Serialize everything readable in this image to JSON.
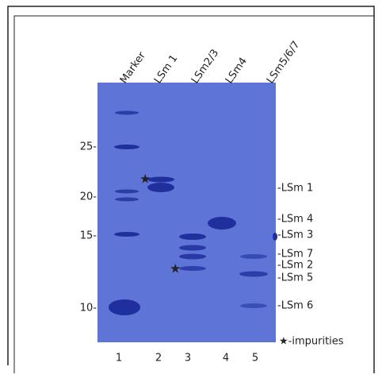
{
  "lanes": [
    {
      "label": "Marker",
      "number": "1"
    },
    {
      "label": "LSm 1",
      "number": "2"
    },
    {
      "label": "LSm2/3",
      "number": "3"
    },
    {
      "label": "LSm4",
      "number": "4"
    },
    {
      "label": "LSm5/6/7",
      "number": "5"
    }
  ],
  "marker_labels": [
    "25-",
    "20-",
    "15-",
    "10-"
  ],
  "band_labels": [
    "-LSm 1",
    "-LSm 4",
    "-LSm 3",
    "-LSm 7",
    "-LSm 2",
    "-LSm 5",
    "-LSm 6"
  ],
  "legend": "★-impurities"
}
